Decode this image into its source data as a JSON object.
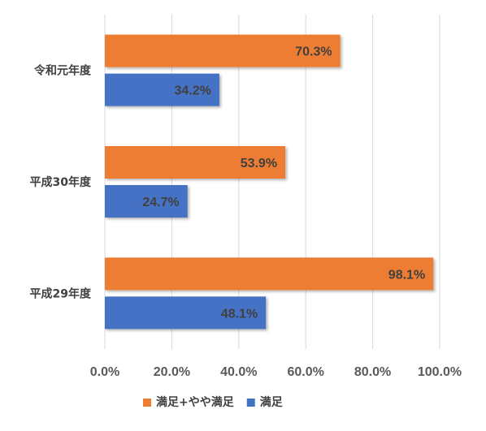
{
  "chart_data": {
    "type": "bar",
    "orientation": "horizontal",
    "categories": [
      "令和元年度",
      "平成30年度",
      "平成29年度"
    ],
    "series": [
      {
        "name": "満足+やや満足",
        "values": [
          70.3,
          53.9,
          98.1
        ],
        "labels": [
          "70.3%",
          "53.9%",
          "98.1%"
        ],
        "color": "#ed7d31"
      },
      {
        "name": "満足",
        "values": [
          34.2,
          24.7,
          48.1
        ],
        "labels": [
          "34.2%",
          "24.7%",
          "48.1%"
        ],
        "color": "#4472c4"
      }
    ],
    "xlim": [
      0,
      100
    ],
    "x_ticks": [
      0,
      20,
      40,
      60,
      80,
      100
    ],
    "x_tick_labels": [
      "0.0%",
      "20.0%",
      "40.0%",
      "60.0%",
      "80.0%",
      "100.0%"
    ],
    "grid": true,
    "legend_position": "bottom",
    "title": "",
    "xlabel": "",
    "ylabel": ""
  }
}
